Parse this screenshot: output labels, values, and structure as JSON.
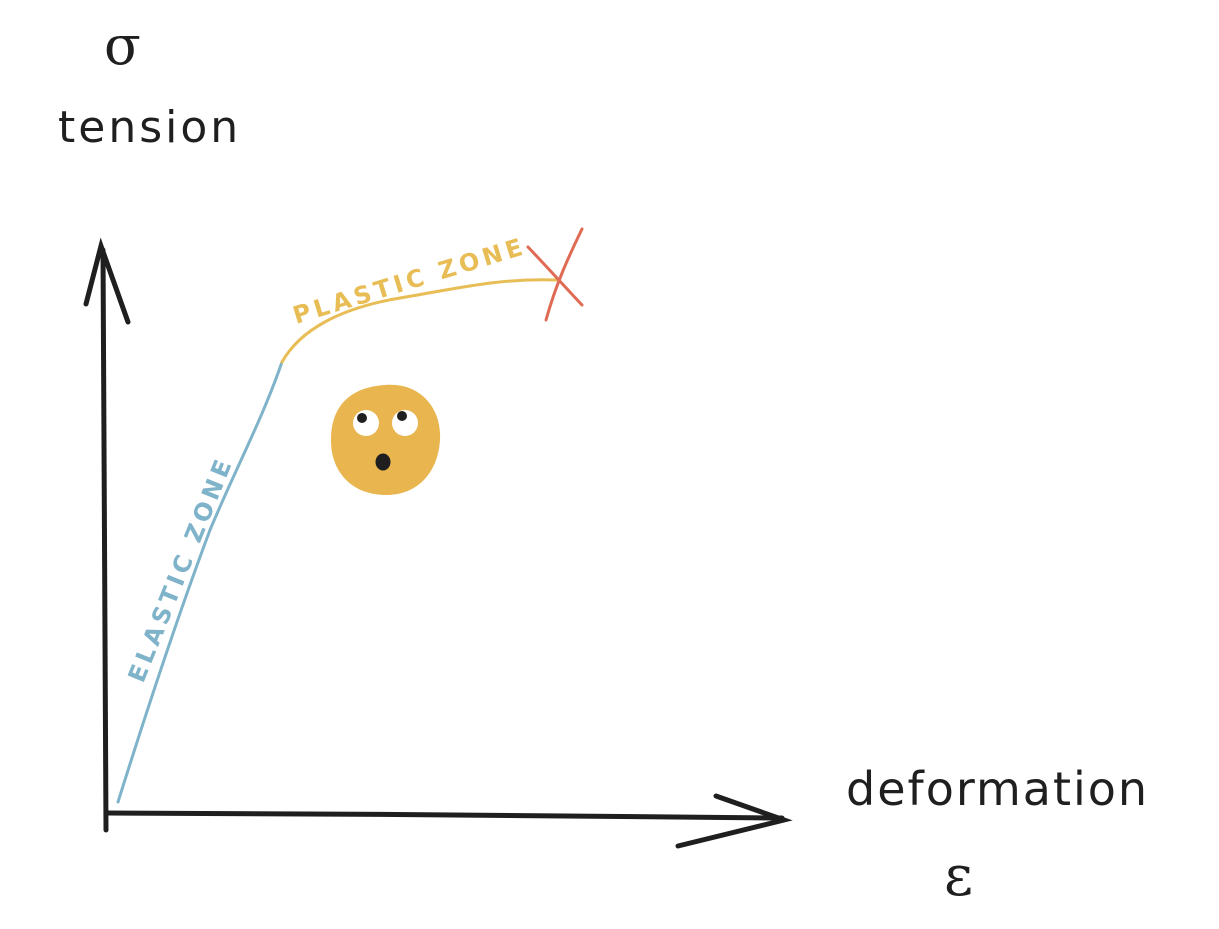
{
  "axes": {
    "y_symbol": "σ",
    "y_label": "tension",
    "x_label": "deformation",
    "x_symbol": "ε"
  },
  "zones": {
    "elastic_label": "ELASTIC ZONE",
    "plastic_label": "PLASTIC ZONE"
  },
  "colors": {
    "axis": "#1f1f1f",
    "elastic": "#7fb3c9",
    "plastic": "#e8bd55",
    "fracture": "#e06b55",
    "face": "#e8b54f",
    "eye_white": "#ffffff",
    "pupil": "#1f1f1f"
  },
  "icons": {
    "fracture_mark": "cross-icon",
    "face": "shocked-face-icon"
  }
}
